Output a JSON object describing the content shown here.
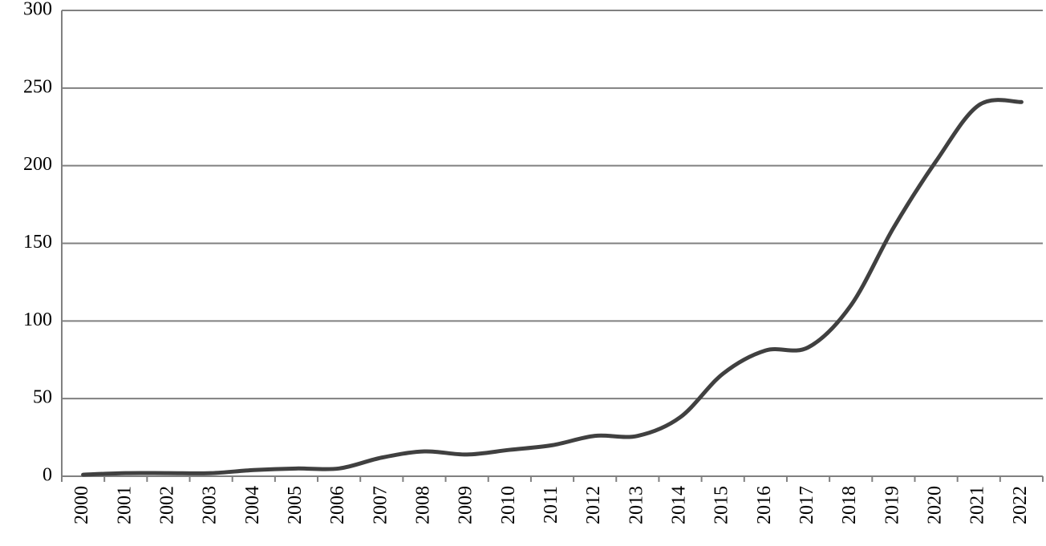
{
  "chart_data": {
    "type": "line",
    "categories": [
      "2000",
      "2001",
      "2002",
      "2003",
      "2004",
      "2005",
      "2006",
      "2007",
      "2008",
      "2009",
      "2010",
      "2011",
      "2012",
      "2013",
      "2014",
      "2015",
      "2016",
      "2017",
      "2018",
      "2019",
      "2020",
      "2021",
      "2022"
    ],
    "values": [
      1,
      2,
      2,
      2,
      4,
      5,
      5,
      12,
      16,
      14,
      17,
      20,
      26,
      26,
      38,
      66,
      81,
      83,
      110,
      160,
      203,
      239,
      241
    ],
    "color": "#404040",
    "ylim": [
      0,
      300
    ],
    "yticks": [
      0,
      50,
      100,
      150,
      200,
      250,
      300
    ],
    "grid": true
  }
}
